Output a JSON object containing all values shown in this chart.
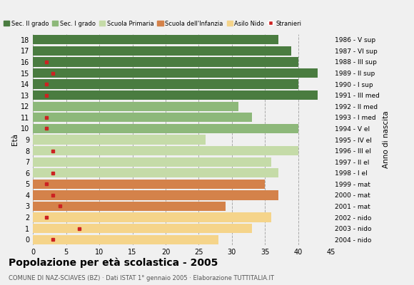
{
  "ages": [
    18,
    17,
    16,
    15,
    14,
    13,
    12,
    11,
    10,
    9,
    8,
    7,
    6,
    5,
    4,
    3,
    2,
    1,
    0
  ],
  "birth_years": [
    "1986 - V sup",
    "1987 - VI sup",
    "1988 - III sup",
    "1989 - II sup",
    "1990 - I sup",
    "1991 - III med",
    "1992 - II med",
    "1993 - I med",
    "1994 - V el",
    "1995 - IV el",
    "1996 - III el",
    "1997 - II el",
    "1998 - I el",
    "1999 - mat",
    "2000 - mat",
    "2001 - mat",
    "2002 - nido",
    "2003 - nido",
    "2004 - nido"
  ],
  "bar_values": [
    37,
    39,
    40,
    43,
    40,
    43,
    31,
    33,
    40,
    26,
    40,
    36,
    37,
    35,
    37,
    29,
    36,
    33,
    28
  ],
  "stranger_values": [
    0,
    0,
    2,
    3,
    2,
    2,
    0,
    2,
    2,
    0,
    3,
    0,
    3,
    2,
    3,
    4,
    2,
    7,
    3
  ],
  "legend_labels": [
    "Sec. II grado",
    "Sec. I grado",
    "Scuola Primaria",
    "Scuola dell'Infanzia",
    "Asilo Nido",
    "Stranieri"
  ],
  "legend_colors": [
    "#4a7c40",
    "#8db87a",
    "#c5dba8",
    "#d4824a",
    "#f5d48a",
    "#cc2222"
  ],
  "title": "Popolazione per età scolastica - 2005",
  "subtitle": "COMUNE DI NAZ-SCIAVES (BZ) · Dati ISTAT 1° gennaio 2005 · Elaborazione TUTTITALIA.IT",
  "ylabel": "Età",
  "ylabel2": "Anno di nascita",
  "xlabel_vals": [
    0,
    5,
    10,
    15,
    20,
    25,
    30,
    35,
    40,
    45
  ],
  "xlim": [
    0,
    45
  ],
  "stranieri_color": "#cc2222",
  "bg_color": "#f0f0f0"
}
